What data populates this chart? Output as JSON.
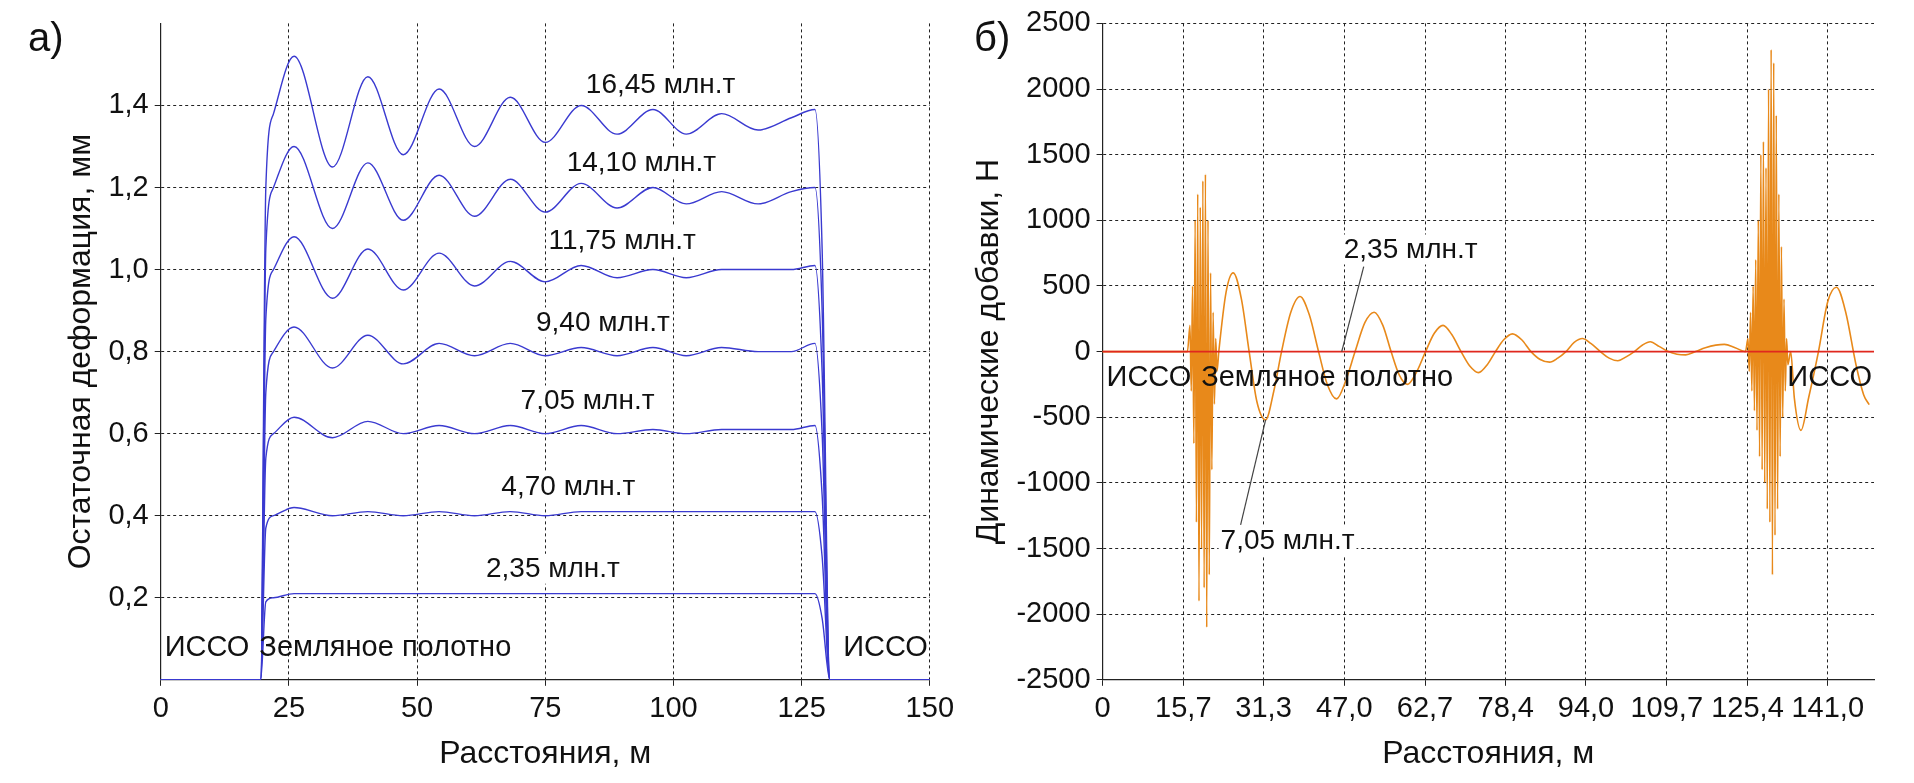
{
  "chart_data": [
    {
      "type": "line",
      "xlabel": "Расстояния, м",
      "ylabel": "Остаточная деформация, мм",
      "xlim": [
        0,
        150
      ],
      "xticks": [
        0,
        25,
        50,
        75,
        100,
        125,
        150
      ],
      "ylim": [
        0,
        1.6
      ],
      "yticks": [
        {
          "value": 0.2,
          "label": "0,2"
        },
        {
          "value": 0.4,
          "label": "0,4"
        },
        {
          "value": 0.6,
          "label": "0,6"
        },
        {
          "value": 0.8,
          "label": "0,8"
        },
        {
          "value": 1.0,
          "label": "1,0"
        },
        {
          "value": 1.2,
          "label": "1,2"
        },
        {
          "value": 1.4,
          "label": "1,4"
        }
      ],
      "grid": true,
      "marker": "none",
      "annotations": [
        "а)",
        "ИССО",
        "Земляное полотно",
        "ИССО"
      ],
      "x": [
        0,
        19.5,
        20.5,
        22,
        26,
        33.5,
        40.4,
        47.3,
        54.3,
        61.2,
        68.2,
        75,
        82,
        89,
        96,
        102.5,
        109.4,
        116.5,
        123,
        127.6,
        129,
        130.5,
        150
      ],
      "series": [
        {
          "name": "2,35 млн.т",
          "color": "#3a3ad0",
          "values": [
            0,
            0,
            0.19,
            0.2,
            0.21,
            0.21,
            0.21,
            0.21,
            0.21,
            0.21,
            0.21,
            0.21,
            0.21,
            0.21,
            0.21,
            0.21,
            0.21,
            0.21,
            0.21,
            0.21,
            0.15,
            0,
            0
          ]
        },
        {
          "name": "4,70 млн.т",
          "color": "#3a3ad0",
          "values": [
            0,
            0,
            0.37,
            0.4,
            0.42,
            0.4,
            0.41,
            0.4,
            0.41,
            0.4,
            0.41,
            0.4,
            0.41,
            0.41,
            0.41,
            0.41,
            0.41,
            0.41,
            0.41,
            0.41,
            0.3,
            0,
            0
          ]
        },
        {
          "name": "7,05 млн.т",
          "color": "#3a3ad0",
          "values": [
            0,
            0,
            0.54,
            0.6,
            0.64,
            0.59,
            0.63,
            0.6,
            0.62,
            0.6,
            0.62,
            0.6,
            0.62,
            0.6,
            0.61,
            0.6,
            0.61,
            0.61,
            0.61,
            0.62,
            0.45,
            0,
            0
          ]
        },
        {
          "name": "9,40 млн.т",
          "color": "#3a3ad0",
          "values": [
            0,
            0,
            0.7,
            0.8,
            0.86,
            0.76,
            0.84,
            0.77,
            0.82,
            0.79,
            0.82,
            0.79,
            0.81,
            0.79,
            0.81,
            0.79,
            0.81,
            0.8,
            0.8,
            0.82,
            0.6,
            0,
            0
          ]
        },
        {
          "name": "11,75 млн.т",
          "color": "#3a3ad0",
          "values": [
            0,
            0,
            0.88,
            1.0,
            1.08,
            0.93,
            1.05,
            0.95,
            1.04,
            0.96,
            1.02,
            0.97,
            1.01,
            0.98,
            1.0,
            0.98,
            1.0,
            1.0,
            1.0,
            1.01,
            0.75,
            0,
            0
          ]
        },
        {
          "name": "14,10 млн.т",
          "color": "#3a3ad0",
          "values": [
            0,
            0,
            1.05,
            1.2,
            1.3,
            1.1,
            1.26,
            1.12,
            1.23,
            1.13,
            1.22,
            1.14,
            1.21,
            1.15,
            1.2,
            1.16,
            1.19,
            1.16,
            1.19,
            1.2,
            0.9,
            0,
            0
          ]
        },
        {
          "name": "16,45 млн.т",
          "color": "#3a3ad0",
          "values": [
            0,
            0,
            1.2,
            1.38,
            1.52,
            1.25,
            1.47,
            1.28,
            1.44,
            1.3,
            1.42,
            1.31,
            1.4,
            1.33,
            1.39,
            1.33,
            1.38,
            1.34,
            1.37,
            1.39,
            1.05,
            0,
            0
          ]
        }
      ]
    },
    {
      "type": "line",
      "xlabel": "Расстояния, м",
      "ylabel": "Динамические добавки, Н",
      "xlim": [
        0,
        150
      ],
      "xticks": [
        0,
        {
          "value": 15.7,
          "label": "15,7"
        },
        {
          "value": 31.3,
          "label": "31,3"
        },
        {
          "value": 47,
          "label": "47,0"
        },
        {
          "value": 62.7,
          "label": "62,7"
        },
        {
          "value": 78.4,
          "label": "78,4"
        },
        {
          "value": 94,
          "label": "94,0"
        },
        {
          "value": 109.7,
          "label": "109,7"
        },
        {
          "value": 125.4,
          "label": "125,4"
        },
        {
          "value": 141,
          "label": "141,0"
        }
      ],
      "ylim": [
        -2500,
        2500
      ],
      "yticks": [
        -2500,
        -2000,
        -1500,
        -1000,
        -500,
        0,
        500,
        1000,
        1500,
        2000,
        2500
      ],
      "grid": true,
      "marker": "none",
      "annotations": [
        "б)",
        "ИССО",
        "Земляное полотно",
        "ИССО"
      ],
      "series": [
        {
          "name": "2,35 млн.т",
          "color": "#e0281e",
          "x": [
            0,
            150
          ],
          "values": [
            0,
            0
          ]
        },
        {
          "name": "7,05 млн.т",
          "color": "#e8891a",
          "x": [
            0,
            16.5,
            17,
            17.25,
            17.5,
            17.75,
            18,
            18.25,
            18.5,
            18.75,
            19,
            19.25,
            19.5,
            19.75,
            20,
            20.25,
            20.5,
            20.75,
            21,
            21.25,
            21.5,
            21.75,
            22,
            22.25,
            22.6,
            24,
            25.4,
            27,
            28.5,
            30,
            31.7,
            33.3,
            34.8,
            36.6,
            38.4,
            40.2,
            42,
            43.7,
            45.5,
            47.3,
            49.1,
            51,
            52.8,
            54.5,
            56.1,
            57.7,
            59.3,
            61,
            62.8,
            64.5,
            66.2,
            67.9,
            69.7,
            71.4,
            73.1,
            74.8,
            76.4,
            78,
            79.7,
            81.5,
            83.3,
            85.1,
            86.9,
            88.5,
            90.1,
            91.7,
            93.3,
            95,
            96.8,
            98.5,
            100.2,
            101.8,
            103.4,
            105,
            106.5,
            108.2,
            110,
            111.7,
            113.4,
            115.3,
            117.2,
            120.9,
            123,
            125,
            125.5,
            125.75,
            126,
            126.25,
            126.5,
            126.75,
            127,
            127.25,
            127.5,
            127.75,
            128,
            128.25,
            128.5,
            128.75,
            129,
            129.25,
            129.5,
            129.75,
            130,
            130.25,
            130.5,
            130.75,
            131,
            131.25,
            131.5,
            131.75,
            132,
            132.25,
            132.5,
            132.75,
            133,
            133.25,
            133.8,
            134.5,
            135.8,
            137.3,
            139.2,
            141,
            142.7,
            144.5,
            146.5,
            148,
            149
          ],
          "values": [
            0,
            0,
            200,
            -300,
            500,
            -700,
            1000,
            -1300,
            1200,
            -1900,
            1100,
            -1500,
            1300,
            -1800,
            1350,
            -2100,
            1000,
            -1700,
            600,
            -900,
            300,
            -400,
            100,
            -150,
            0,
            450,
            600,
            400,
            0,
            -380,
            -520,
            -300,
            0,
            300,
            420,
            280,
            0,
            -250,
            -360,
            -220,
            0,
            220,
            300,
            200,
            0,
            -180,
            -250,
            -160,
            0,
            140,
            200,
            130,
            0,
            -110,
            -160,
            -100,
            0,
            90,
            135,
            90,
            0,
            -60,
            -80,
            -50,
            0,
            70,
            100,
            60,
            0,
            -50,
            -70,
            -40,
            0,
            50,
            75,
            40,
            0,
            -20,
            -25,
            0,
            30,
            55,
            30,
            0,
            100,
            -150,
            300,
            -300,
            500,
            -450,
            700,
            -600,
            1000,
            -800,
            1500,
            -900,
            1600,
            -1000,
            1400,
            -1200,
            2000,
            -1300,
            2300,
            -1700,
            2200,
            -1400,
            1800,
            -1200,
            1200,
            -800,
            800,
            -500,
            400,
            -300,
            100,
            -100,
            0,
            -350,
            -600,
            -350,
            0,
            380,
            490,
            300,
            -100,
            -330,
            -400
          ]
        }
      ]
    }
  ]
}
